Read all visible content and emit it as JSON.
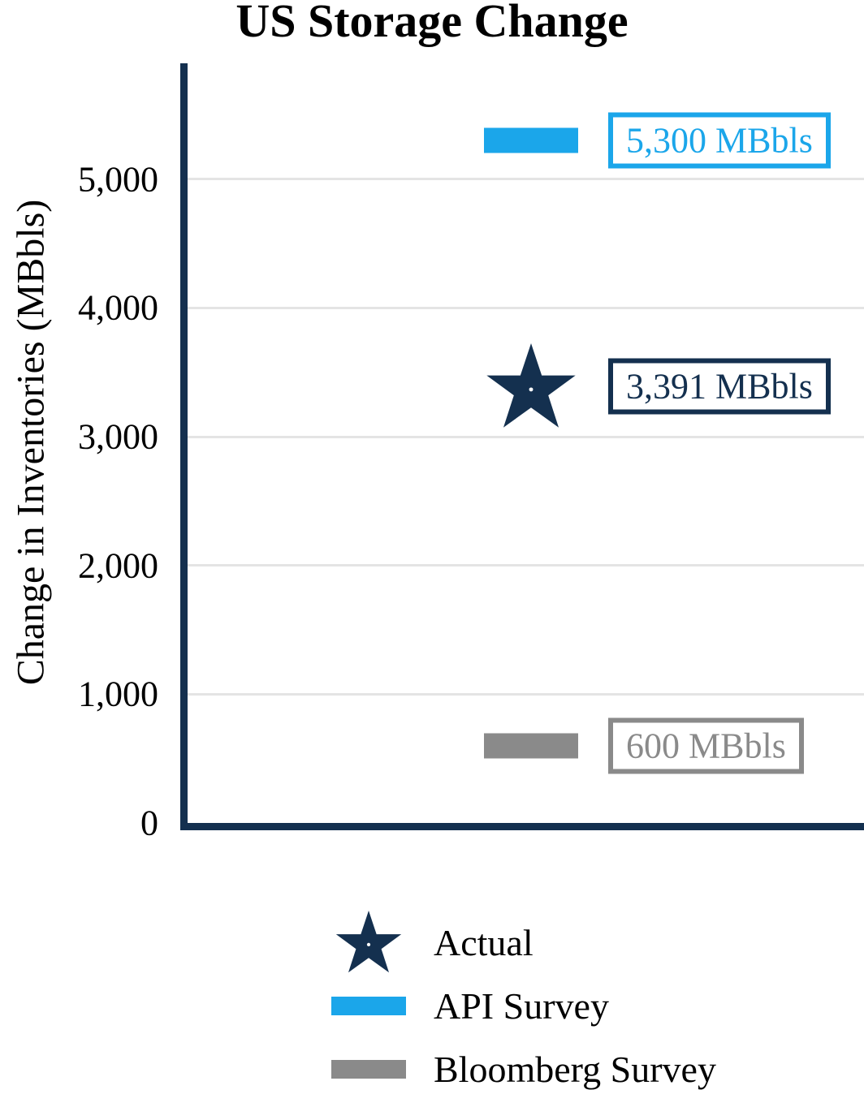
{
  "chart": {
    "title": "US Storage Change",
    "ylabel": "Change in Inventories (MBbls)"
  },
  "chart_data": {
    "type": "scatter",
    "title": "US Storage Change",
    "xlabel": "",
    "ylabel": "Change in Inventories (MBbls)",
    "ylim": [
      0,
      5900
    ],
    "yticks": [
      0,
      1000,
      2000,
      3000,
      4000,
      5000
    ],
    "ytick_labels": [
      "0",
      "1,000",
      "2,000",
      "3,000",
      "4,000",
      "5,000"
    ],
    "grid": true,
    "legend_position": "bottom",
    "axis_color": "#14304f",
    "grid_color": "#e4e4e4",
    "series": [
      {
        "name": "Actual",
        "marker": "star",
        "color": "#14304f",
        "value": 3391,
        "label": "3,391 MBbls"
      },
      {
        "name": "API Survey",
        "marker": "bar",
        "color": "#1ba6ea",
        "value": 5300,
        "label": "5,300 MBbls"
      },
      {
        "name": "Bloomberg Survey",
        "marker": "bar",
        "color": "#8a8a8a",
        "value": 600,
        "label": "600 MBbls"
      }
    ]
  }
}
